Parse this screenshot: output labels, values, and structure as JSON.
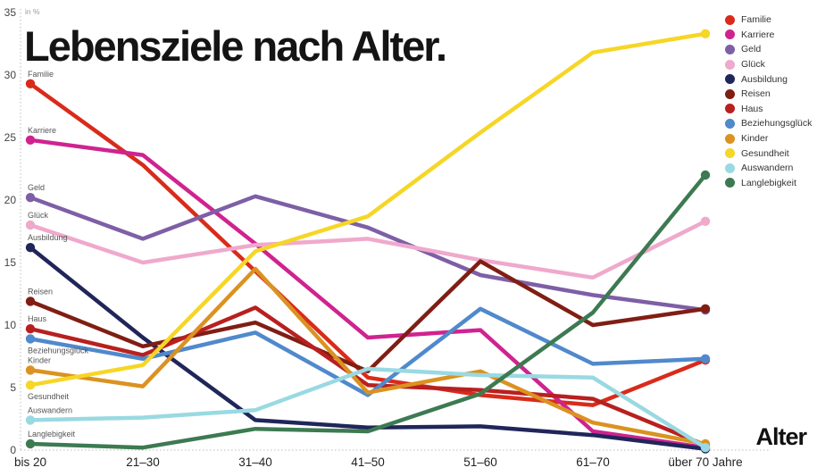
{
  "title": "Lebensziele nach Alter.",
  "chart_data": {
    "type": "line",
    "title": "Lebensziele nach Alter.",
    "xlabel": "Alter",
    "ylabel": "in %",
    "ylim": [
      0,
      35
    ],
    "y_ticks": [
      35,
      30,
      25,
      20,
      15,
      10,
      5,
      0
    ],
    "grid": "dotted left axis and dotted baseline only",
    "legend_position": "top-right",
    "categories": [
      "bis 20",
      "21–30",
      "31–40",
      "41–50",
      "51–60",
      "61–70",
      "über 70 Jahre"
    ],
    "series": [
      {
        "name": "Familie",
        "color": "#d92b1b",
        "values": [
          29.3,
          22.8,
          14.3,
          5.8,
          4.4,
          3.6,
          7.2
        ]
      },
      {
        "name": "Karriere",
        "color": "#cf2390",
        "values": [
          24.8,
          23.6,
          16.5,
          9.0,
          9.6,
          1.5,
          0.2
        ]
      },
      {
        "name": "Geld",
        "color": "#7e5fa6",
        "values": [
          20.2,
          16.9,
          20.3,
          17.8,
          14.0,
          12.4,
          11.2
        ]
      },
      {
        "name": "Glück",
        "color": "#efa9cc",
        "values": [
          18.0,
          15.0,
          16.4,
          16.9,
          15.2,
          13.8,
          18.3
        ]
      },
      {
        "name": "Ausbildung",
        "color": "#20265a",
        "values": [
          16.2,
          9.0,
          2.4,
          1.8,
          1.9,
          1.2,
          0.1
        ]
      },
      {
        "name": "Reisen",
        "color": "#801e14",
        "values": [
          11.9,
          8.3,
          10.2,
          6.3,
          15.1,
          10.0,
          11.3
        ]
      },
      {
        "name": "Haus",
        "color": "#b8201f",
        "values": [
          9.7,
          7.6,
          11.4,
          5.2,
          4.8,
          4.1,
          0.4
        ]
      },
      {
        "name": "Beziehungsglück",
        "color": "#5089cc",
        "values": [
          8.9,
          7.3,
          9.4,
          4.4,
          11.3,
          6.9,
          7.3
        ]
      },
      {
        "name": "Kinder",
        "color": "#db9221",
        "values": [
          6.4,
          5.1,
          14.5,
          4.6,
          6.3,
          2.2,
          0.5
        ]
      },
      {
        "name": "Gesundheit",
        "color": "#f6d626",
        "values": [
          5.2,
          6.8,
          15.9,
          18.7,
          25.4,
          31.8,
          33.3
        ]
      },
      {
        "name": "Auswandern",
        "color": "#99d9e2",
        "values": [
          2.4,
          2.6,
          3.2,
          6.5,
          6.0,
          5.8,
          0.2
        ]
      },
      {
        "name": "Langlebigkeit",
        "color": "#3d7a52",
        "values": [
          0.5,
          0.2,
          1.7,
          1.5,
          4.5,
          11.0,
          22.0
        ]
      }
    ]
  },
  "axis_colors": {
    "grid": "#bbbbbb",
    "tick_text": "#444444"
  }
}
